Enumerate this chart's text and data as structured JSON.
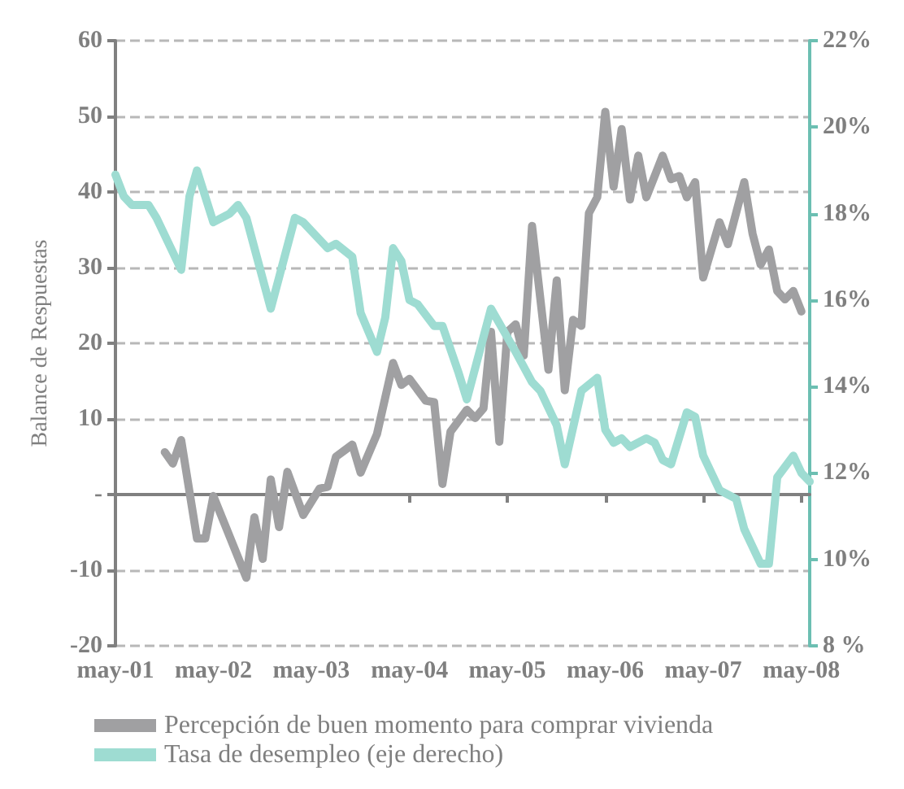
{
  "chart_data": {
    "type": "line",
    "ylabel": "Balance de Respuestas",
    "xlim": [
      "2001-05",
      "2008-06"
    ],
    "xticks": [
      {
        "value": "2001-05",
        "label": "may-01"
      },
      {
        "value": "2002-05",
        "label": "may-02"
      },
      {
        "value": "2003-05",
        "label": "may-03"
      },
      {
        "value": "2004-05",
        "label": "may-04"
      },
      {
        "value": "2005-05",
        "label": "may-05"
      },
      {
        "value": "2006-05",
        "label": "may-06"
      },
      {
        "value": "2007-05",
        "label": "may-07"
      },
      {
        "value": "2008-05",
        "label": "may-08"
      }
    ],
    "ylim": [
      -20,
      60
    ],
    "yticks": [
      -20,
      -10,
      {
        "value": 0,
        "label": "-"
      },
      10,
      20,
      30,
      40,
      50,
      60
    ],
    "y2lim": [
      8,
      22
    ],
    "y2ticks": [
      {
        "value": 8,
        "label": "8 %"
      },
      {
        "value": 10,
        "label": "10%"
      },
      {
        "value": 12,
        "label": "12%"
      },
      {
        "value": 14,
        "label": "14%"
      },
      {
        "value": 16,
        "label": "16%"
      },
      {
        "value": 18,
        "label": "18%"
      },
      {
        "value": 20,
        "label": "20%"
      },
      {
        "value": 22,
        "label": "22%"
      }
    ],
    "grid": "y",
    "legend": "bottom",
    "marker": "none",
    "line_style": "solid",
    "series": [
      {
        "name": "Percepción de buen momento para comprar vivienda",
        "color": "#a0a0a2",
        "x": [
          "2001-11",
          "2001-12",
          "2002-01",
          "2002-03",
          "2002-04",
          "2002-05",
          "2002-09",
          "2002-10",
          "2002-11",
          "2002-12",
          "2003-01",
          "2003-02",
          "2003-04",
          "2003-06",
          "2003-07",
          "2003-08",
          "2003-10",
          "2003-11",
          "2004-01",
          "2004-03",
          "2004-04",
          "2004-05",
          "2004-07",
          "2004-08",
          "2004-09",
          "2004-10",
          "2004-12",
          "2005-01",
          "2005-02",
          "2005-03",
          "2005-04",
          "2005-05",
          "2005-06",
          "2005-07",
          "2005-08",
          "2005-10",
          "2005-11",
          "2005-12",
          "2006-01",
          "2006-02",
          "2006-03",
          "2006-04",
          "2006-05",
          "2006-06",
          "2006-07",
          "2006-08",
          "2006-09",
          "2006-10",
          "2006-12",
          "2007-01",
          "2007-02",
          "2007-03",
          "2007-04",
          "2007-05",
          "2007-07",
          "2007-08",
          "2007-10",
          "2007-11",
          "2007-12",
          "2008-01",
          "2008-02",
          "2008-03",
          "2008-04",
          "2008-05"
        ],
        "values": [
          5.6,
          4.1,
          7.2,
          -5.8,
          -5.8,
          -0.2,
          -11,
          -3,
          -8.5,
          2,
          -4.3,
          3,
          -2.7,
          0.8,
          1,
          5,
          6.6,
          2.9,
          8,
          17.4,
          14.5,
          15.3,
          12.4,
          12.2,
          1.4,
          8.3,
          11.2,
          10.1,
          11.4,
          21.5,
          7,
          21.5,
          22.5,
          18.4,
          35.5,
          16.5,
          28.3,
          13.8,
          23.1,
          22.3,
          37.2,
          39.3,
          50.6,
          40.7,
          48.3,
          39,
          44.8,
          39.3,
          44.8,
          41.7,
          42.1,
          39.3,
          41.3,
          28.7,
          36,
          33.1,
          41.3,
          34.5,
          30.4,
          32.4,
          26.9,
          25.8,
          26.9,
          24.2
        ]
      },
      {
        "name": "Tasa de desempleo (eje derecho)",
        "color": "#9edcd2",
        "axis": "y2",
        "x": [
          "2001-05",
          "2001-06",
          "2001-07",
          "2001-09",
          "2001-10",
          "2002-01",
          "2002-02",
          "2002-03",
          "2002-05",
          "2002-07",
          "2002-08",
          "2002-09",
          "2002-12",
          "2003-03",
          "2003-04",
          "2003-07",
          "2003-08",
          "2003-10",
          "2003-11",
          "2004-01",
          "2004-02",
          "2004-03",
          "2004-04",
          "2004-05",
          "2004-06",
          "2004-08",
          "2004-09",
          "2004-11",
          "2004-12",
          "2005-03",
          "2005-06",
          "2005-08",
          "2005-09",
          "2005-11",
          "2005-12",
          "2006-02",
          "2006-04",
          "2006-05",
          "2006-06",
          "2006-07",
          "2006-08",
          "2006-10",
          "2006-11",
          "2006-12",
          "2007-01",
          "2007-03",
          "2007-04",
          "2007-05",
          "2007-07",
          "2007-09",
          "2007-10",
          "2007-12",
          "2008-01",
          "2008-02",
          "2008-04",
          "2008-05",
          "2008-06"
        ],
        "values": [
          18.9,
          18.4,
          18.2,
          18.2,
          17.9,
          16.7,
          18.4,
          19.0,
          17.8,
          18.0,
          18.2,
          17.9,
          15.8,
          17.9,
          17.8,
          17.2,
          17.3,
          17.0,
          15.7,
          14.8,
          15.6,
          17.2,
          16.9,
          16.0,
          15.9,
          15.4,
          15.4,
          14.3,
          13.7,
          15.8,
          14.8,
          14.1,
          13.9,
          13.1,
          12.2,
          13.9,
          14.2,
          13.0,
          12.7,
          12.8,
          12.6,
          12.8,
          12.7,
          12.3,
          12.2,
          13.4,
          13.3,
          12.4,
          11.6,
          11.4,
          10.7,
          9.9,
          9.9,
          11.9,
          12.4,
          12.0,
          11.8
        ]
      }
    ]
  }
}
